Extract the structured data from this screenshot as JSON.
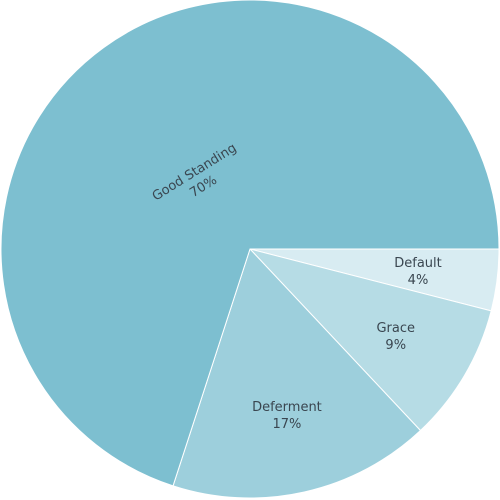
{
  "chart_data": {
    "type": "pie",
    "title": "",
    "slices": [
      {
        "label": "Good Standing",
        "value": 70,
        "value_label": "70%",
        "color": "#7dbfd0"
      },
      {
        "label": "Deferment",
        "value": 17,
        "value_label": "17%",
        "color": "#9dcfdc"
      },
      {
        "label": "Grace",
        "value": 9,
        "value_label": "9%",
        "color": "#b6dce5"
      },
      {
        "label": "Default",
        "value": 4,
        "value_label": "4%",
        "color": "#d8ecf2"
      }
    ],
    "start": "3 o'clock",
    "direction": "clockwise from Default",
    "legend": "none",
    "label_style": "inside slices, name above percent"
  }
}
